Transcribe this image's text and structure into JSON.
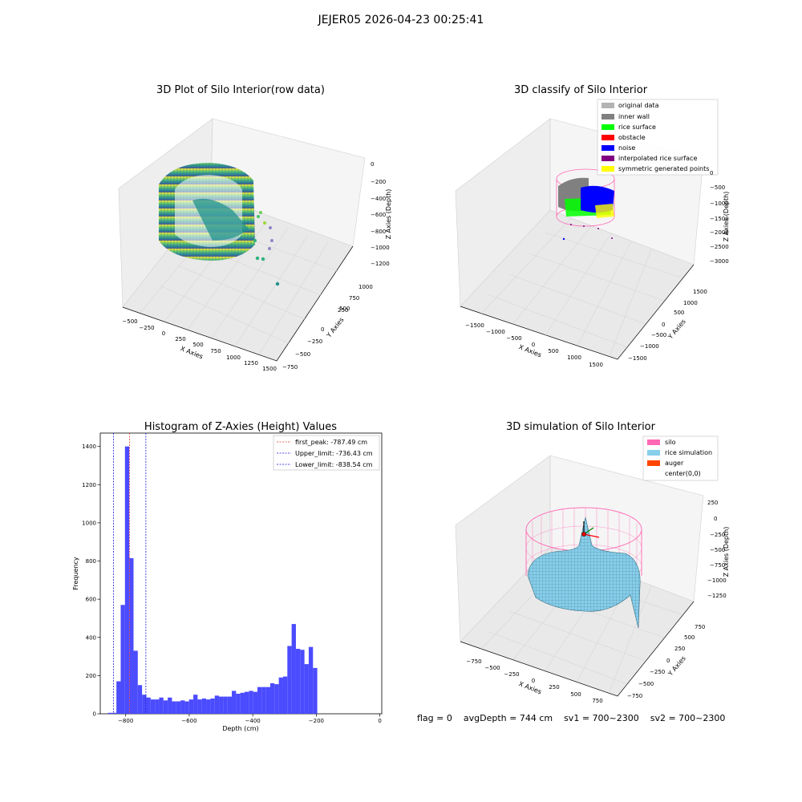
{
  "figure": {
    "suptitle": "JEJER05 2026-04-23 00:25:41"
  },
  "panel_titles": {
    "raw": "3D Plot of Silo Interior(row data)",
    "classify": "3D classify of Silo Interior",
    "hist": "Histogram of Z-Axies (Height) Values",
    "sim": "3D simulation of Silo Interior"
  },
  "status": {
    "flag": "flag = 0",
    "avg_depth": "avgDepth = 744 cm",
    "sv1": "sv1 = 700~2300",
    "sv2": "sv2 = 700~2300"
  },
  "colors": {
    "hist_bar": "#4b4bff",
    "first_peak": "#e53935",
    "limits": "#1a1ad6",
    "silo": "#ff69b4",
    "rice_simulation": "#87ceeb",
    "auger": "#ff4500",
    "original_data": "#b3b3b3",
    "inner_wall": "#808080",
    "rice_surface": "#00ff00",
    "obstacle": "#ff0000",
    "noise": "#0000ff",
    "interpolated_rice_surface": "#800080",
    "symmetric_generated_points": "#ffff00"
  },
  "chart_data": [
    {
      "type": "scatter",
      "title": "3D Plot of Silo Interior(row data)",
      "xlabel": "X Axies",
      "ylabel": "Y Axies",
      "zlabel": "Z Axies (Depth)",
      "x_ticks": [
        "−500",
        "−250",
        "0",
        "250",
        "500",
        "750",
        "1000",
        "1250",
        "1500"
      ],
      "y_ticks": [
        "−750",
        "−500",
        "−250",
        "0",
        "250",
        "500",
        "750",
        "1000"
      ],
      "z_ticks": [
        "0",
        "−200",
        "−400",
        "−600",
        "−800",
        "−1000",
        "−1200"
      ],
      "grid": true
    },
    {
      "type": "scatter",
      "title": "3D classify of Silo Interior",
      "xlabel": "X Axies",
      "ylabel": "Y Axies",
      "zlabel": "Z Axies (Depth)",
      "x_ticks": [
        "−1500",
        "−1000",
        "−500",
        "0",
        "500",
        "1000",
        "1500"
      ],
      "y_ticks": [
        "−1500",
        "−1000",
        "−500",
        "0",
        "500",
        "1000",
        "1500"
      ],
      "z_ticks": [
        "0",
        "−500",
        "−1000",
        "−1500",
        "−2000",
        "−2500",
        "−3000"
      ],
      "legend": [
        "original data",
        "inner wall",
        "rice surface",
        "obstacle",
        "noise",
        "interpolated rice surface",
        "symmetric generated points"
      ],
      "legend_position": "top-right",
      "grid": true
    },
    {
      "type": "bar",
      "title": "Histogram of Z-Axies (Height) Values",
      "xlabel": "Depth (cm)",
      "ylabel": "Frequency",
      "xlim": [
        -880,
        6
      ],
      "ylim": [
        0,
        1470
      ],
      "x_ticks": [
        -800,
        -600,
        -400,
        -200,
        0
      ],
      "x_tick_labels": [
        "−800",
        "−600",
        "−400",
        "−200",
        "0"
      ],
      "y_ticks": [
        0,
        200,
        400,
        600,
        800,
        1000,
        1200,
        1400
      ],
      "y_tick_labels": [
        "0",
        "200",
        "400",
        "600",
        "800",
        "1000",
        "1200",
        "1400"
      ],
      "bin_start": -856,
      "bin_width": 13.45,
      "values": [
        5,
        5,
        170,
        570,
        1400,
        815,
        330,
        150,
        100,
        85,
        75,
        75,
        85,
        70,
        85,
        65,
        65,
        70,
        65,
        75,
        100,
        75,
        80,
        75,
        80,
        95,
        90,
        90,
        90,
        120,
        105,
        110,
        115,
        120,
        115,
        140,
        140,
        140,
        160,
        155,
        190,
        195,
        355,
        470,
        340,
        335,
        260,
        350,
        240
      ],
      "lines": [
        {
          "name": "first_peak",
          "label": "first_peak: -787.49 cm",
          "x": -787.49,
          "color": "#e53935"
        },
        {
          "name": "upper_limit",
          "label": "Upper_limit: -736.43 cm",
          "x": -736.43,
          "color": "#1a1ad6"
        },
        {
          "name": "lower_limit",
          "label": "Lower_limit: -838.54 cm",
          "x": -838.54,
          "color": "#1a1ad6"
        }
      ],
      "legend_position": "top-right",
      "grid": false
    },
    {
      "type": "area",
      "title": "3D simulation of Silo Interior",
      "xlabel": "X Axies",
      "ylabel": "Y Axies",
      "zlabel": "Z Axies (Depth)",
      "x_ticks": [
        "−750",
        "−500",
        "−250",
        "0",
        "250",
        "500",
        "750"
      ],
      "y_ticks": [
        "−750",
        "−500",
        "−250",
        "0",
        "250",
        "500",
        "750"
      ],
      "z_ticks": [
        "250",
        "0",
        "−250",
        "−500",
        "−750",
        "−1000",
        "−1250"
      ],
      "legend": [
        "silo",
        "rice simulation",
        "auger",
        "center(0,0)"
      ],
      "legend_position": "top-right",
      "grid": true
    }
  ]
}
